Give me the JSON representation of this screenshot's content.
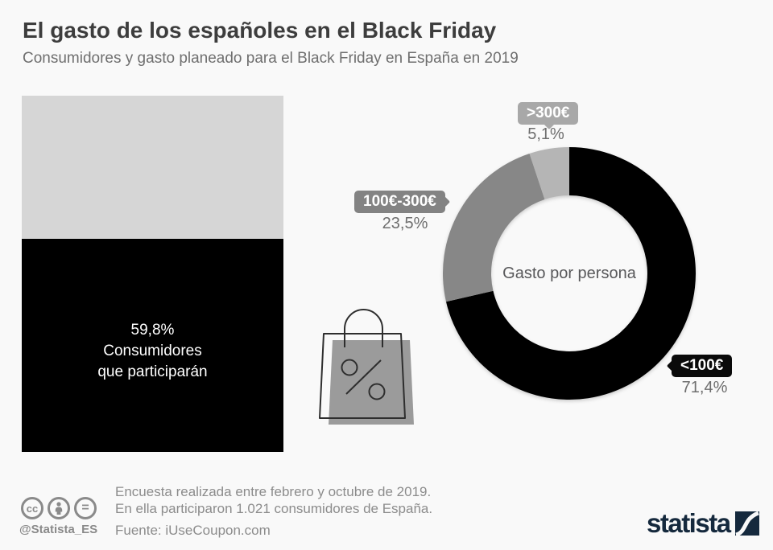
{
  "header": {
    "title": "El gasto de los españoles en el Black Friday",
    "subtitle": "Consumidores y gasto planeado para el Black Friday en España en 2019"
  },
  "chart_data": [
    {
      "type": "bar",
      "title": "Consumidores que participarán",
      "categories": [
        "Consumidores que participarán"
      ],
      "values": [
        59.8
      ],
      "value_label": "59,8%",
      "label_lines": [
        "59,8%",
        "Consumidores",
        "que participarán"
      ],
      "ylim": [
        0,
        100
      ],
      "bar_color": "#000000",
      "track_color": "#d6d6d6"
    },
    {
      "type": "pie",
      "subtype": "donut",
      "title": "Gasto por persona",
      "center_label": "Gasto por persona",
      "categories": [
        "<100€",
        "100€-300€",
        ">300€"
      ],
      "values": [
        71.4,
        23.5,
        5.1
      ],
      "value_labels": [
        "71,4%",
        "23,5%",
        "5,1%"
      ],
      "colors": [
        "#000000",
        "#878787",
        "#b5b5b5"
      ],
      "start_angle_deg": -90,
      "direction": "clockwise",
      "legend_position": "callout-badges"
    }
  ],
  "icons": {
    "bag": "shopping-bag-percent-icon",
    "cc_text": "cc",
    "equals_text": "="
  },
  "footer": {
    "handle": "@Statista_ES",
    "notes": [
      "Encuesta realizada entre febrero y octubre de 2019.",
      "En ella participaron 1.021 consumidores de España."
    ],
    "source": "Fuente: iUseCoupon.com",
    "brand": "statista",
    "brand_color": "#15293d"
  }
}
